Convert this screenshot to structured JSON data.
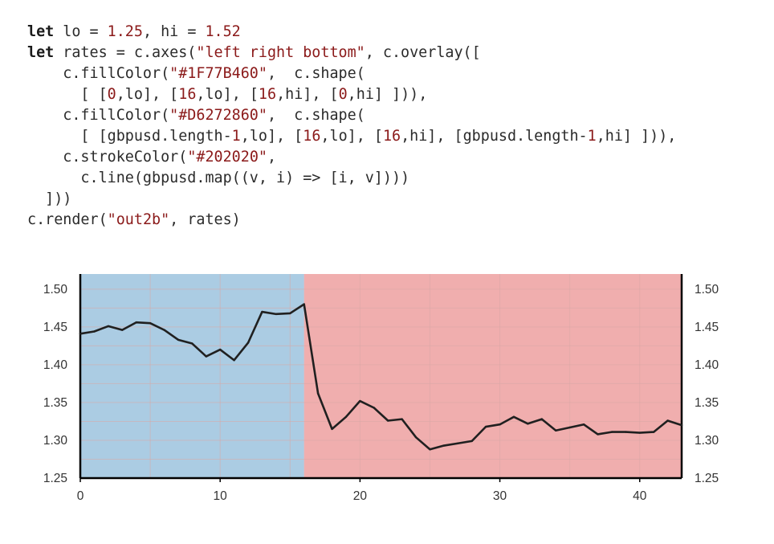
{
  "code": {
    "lines": [
      [
        {
          "t": "let",
          "c": "kw"
        },
        {
          "t": " lo = "
        },
        {
          "t": "1.25",
          "c": "num"
        },
        {
          "t": ", hi = "
        },
        {
          "t": "1.52",
          "c": "num"
        }
      ],
      [
        {
          "t": "let",
          "c": "kw"
        },
        {
          "t": " rates = c.axes("
        },
        {
          "t": "\"left right bottom\"",
          "c": "str"
        },
        {
          "t": ", c.overlay(["
        }
      ],
      [
        {
          "t": "    c.fillColor("
        },
        {
          "t": "\"#1F77B460\"",
          "c": "str"
        },
        {
          "t": ",  c.shape("
        }
      ],
      [
        {
          "t": "      [ ["
        },
        {
          "t": "0",
          "c": "num"
        },
        {
          "t": ",lo], ["
        },
        {
          "t": "16",
          "c": "num"
        },
        {
          "t": ",lo], ["
        },
        {
          "t": "16",
          "c": "num"
        },
        {
          "t": ",hi], ["
        },
        {
          "t": "0",
          "c": "num"
        },
        {
          "t": ",hi] ])),"
        }
      ],
      [
        {
          "t": "    c.fillColor("
        },
        {
          "t": "\"#D6272860\"",
          "c": "str"
        },
        {
          "t": ",  c.shape("
        }
      ],
      [
        {
          "t": "      [ [gbpusd.length-"
        },
        {
          "t": "1",
          "c": "num"
        },
        {
          "t": ",lo], ["
        },
        {
          "t": "16",
          "c": "num"
        },
        {
          "t": ",lo], ["
        },
        {
          "t": "16",
          "c": "num"
        },
        {
          "t": ",hi], [gbpusd.length-"
        },
        {
          "t": "1",
          "c": "num"
        },
        {
          "t": ",hi] ])),"
        }
      ],
      [
        {
          "t": "    c.strokeColor("
        },
        {
          "t": "\"#202020\"",
          "c": "str"
        },
        {
          "t": ","
        }
      ],
      [
        {
          "t": "      c.line(gbpusd.map((v, i) => [i, v])))"
        }
      ],
      [
        {
          "t": "  ]))"
        }
      ],
      [
        {
          "t": "c.render("
        },
        {
          "t": "\"out2b\"",
          "c": "str"
        },
        {
          "t": ", rates)"
        }
      ]
    ]
  },
  "chart_data": {
    "type": "line",
    "x": [
      0,
      1,
      2,
      3,
      4,
      5,
      6,
      7,
      8,
      9,
      10,
      11,
      12,
      13,
      14,
      15,
      16,
      17,
      18,
      19,
      20,
      21,
      22,
      23,
      24,
      25,
      26,
      27,
      28,
      29,
      30,
      31,
      32,
      33,
      34,
      35,
      36,
      37,
      38,
      39,
      40,
      41,
      42,
      43
    ],
    "y": [
      1.441,
      1.444,
      1.451,
      1.446,
      1.456,
      1.455,
      1.446,
      1.433,
      1.428,
      1.411,
      1.42,
      1.406,
      1.429,
      1.47,
      1.467,
      1.468,
      1.48,
      1.362,
      1.315,
      1.331,
      1.352,
      1.343,
      1.326,
      1.328,
      1.304,
      1.288,
      1.293,
      1.296,
      1.299,
      1.318,
      1.321,
      1.331,
      1.322,
      1.328,
      1.313,
      1.317,
      1.321,
      1.308,
      1.311,
      1.311,
      1.31,
      1.311,
      1.326,
      1.32
    ],
    "ylim": [
      1.25,
      1.52
    ],
    "xlim": [
      0,
      43
    ],
    "xticks": [
      0,
      10,
      20,
      30,
      40
    ],
    "xtick_labels": [
      "0",
      "10",
      "20",
      "30",
      "40"
    ],
    "yticks": [
      1.25,
      1.3,
      1.35,
      1.4,
      1.45,
      1.5
    ],
    "ytick_labels": [
      "1.25",
      "1.30",
      "1.35",
      "1.40",
      "1.45",
      "1.50"
    ],
    "axes": [
      "left",
      "right",
      "bottom"
    ],
    "grid": true,
    "regions": [
      {
        "x0": 0,
        "x1": 16,
        "color": "#1F77B460"
      },
      {
        "x0": 16,
        "x1": 43,
        "color": "#D6272860"
      }
    ],
    "line_color": "#202020",
    "grid_color": "#d9a7a6"
  }
}
